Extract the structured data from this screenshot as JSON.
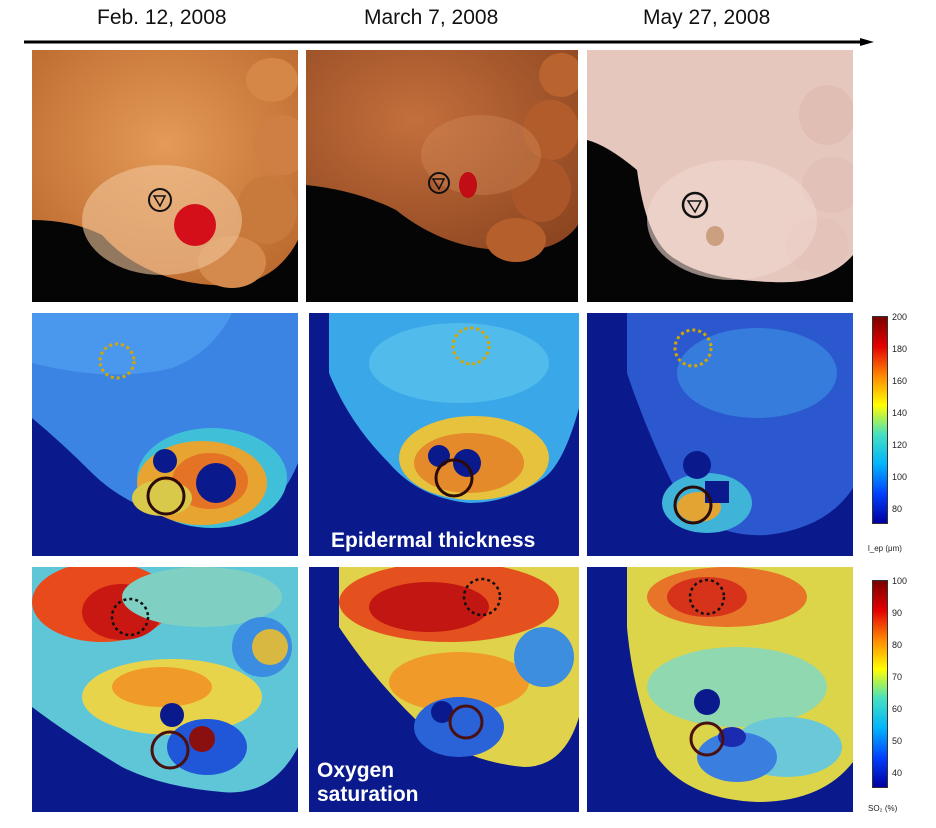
{
  "dates": [
    "Feb. 12, 2008",
    "March 7, 2008",
    "May 27, 2008"
  ],
  "labels": {
    "epidermal": "Epidermal thickness",
    "oxygen_line1": "Oxygen",
    "oxygen_line2": "saturation"
  },
  "colorbars": {
    "thickness": {
      "ticks": [
        "200",
        "180",
        "160",
        "140",
        "120",
        "100",
        "80"
      ],
      "label": "l_ep (μm)"
    },
    "oxygen": {
      "ticks": [
        "100",
        "90",
        "80",
        "70",
        "60",
        "50",
        "40"
      ],
      "label": "SO₂ (%)"
    }
  },
  "colors": {
    "background_map": "#0a1a8c",
    "marker_dotted": "#d6a500",
    "marker_circle": "#4a0f0f",
    "wound": "#c8101a"
  }
}
